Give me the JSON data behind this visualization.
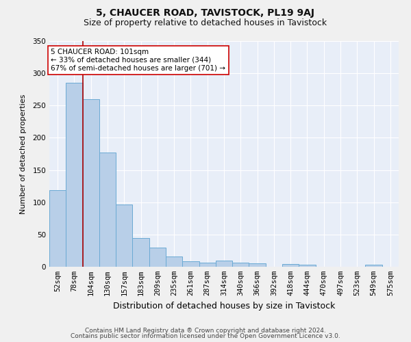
{
  "title": "5, CHAUCER ROAD, TAVISTOCK, PL19 9AJ",
  "subtitle": "Size of property relative to detached houses in Tavistock",
  "xlabel": "Distribution of detached houses by size in Tavistock",
  "ylabel": "Number of detached properties",
  "bar_labels": [
    "52sqm",
    "78sqm",
    "104sqm",
    "130sqm",
    "157sqm",
    "183sqm",
    "209sqm",
    "235sqm",
    "261sqm",
    "287sqm",
    "314sqm",
    "340sqm",
    "366sqm",
    "392sqm",
    "418sqm",
    "444sqm",
    "470sqm",
    "497sqm",
    "523sqm",
    "549sqm",
    "575sqm"
  ],
  "bar_values": [
    119,
    285,
    260,
    177,
    96,
    45,
    30,
    16,
    8,
    6,
    10,
    6,
    5,
    0,
    4,
    3,
    0,
    0,
    0,
    3,
    0
  ],
  "bar_color": "#b8cfe8",
  "bar_edge_color": "#6aaad4",
  "background_color": "#e8eef8",
  "grid_color": "#ffffff",
  "annotation_text": "5 CHAUCER ROAD: 101sqm\n← 33% of detached houses are smaller (344)\n67% of semi-detached houses are larger (701) →",
  "annotation_box_color": "#ffffff",
  "annotation_box_edge": "#cc0000",
  "vline_x_left_edge": 1.5,
  "vline_color": "#aa0000",
  "ylim": [
    0,
    350
  ],
  "yticks": [
    0,
    50,
    100,
    150,
    200,
    250,
    300,
    350
  ],
  "footer_line1": "Contains HM Land Registry data ® Crown copyright and database right 2024.",
  "footer_line2": "Contains public sector information licensed under the Open Government Licence v3.0.",
  "title_fontsize": 10,
  "subtitle_fontsize": 9,
  "xlabel_fontsize": 9,
  "ylabel_fontsize": 8,
  "tick_fontsize": 7.5,
  "annotation_fontsize": 7.5,
  "footer_fontsize": 6.5
}
